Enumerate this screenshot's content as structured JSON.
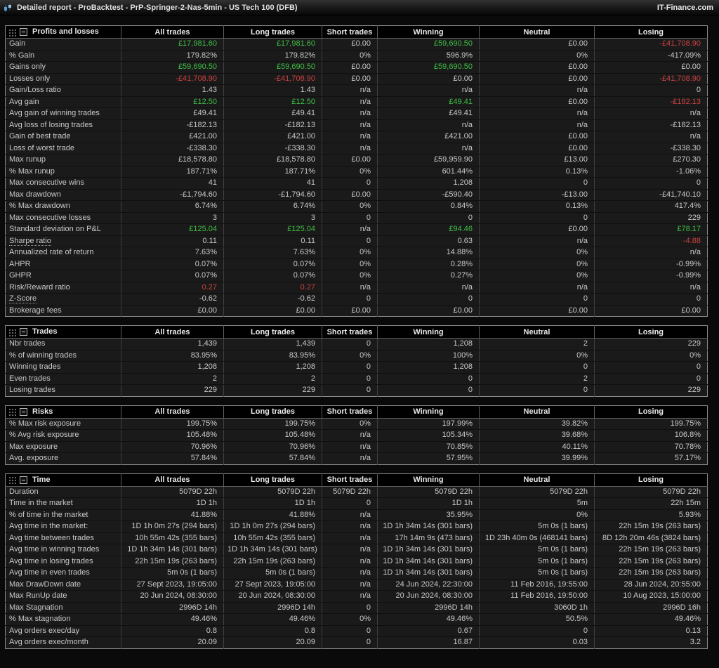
{
  "title_bar": {
    "title": "Detailed report - ProBacktest - PrP-Springer-2-Nas-5min - US Tech 100 (DFB)",
    "right_text": "IT-Finance.com"
  },
  "colors": {
    "green": "#3fbf46",
    "red": "#cc4040",
    "background": "#0a0a0a",
    "row": "#1a1a1a",
    "header": "#000000"
  },
  "columns": [
    "All trades",
    "Long trades",
    "Short trades",
    "Winning",
    "Neutral",
    "Losing"
  ],
  "tables": [
    {
      "title": "Profits and losses",
      "rows": [
        {
          "label": "Gain",
          "values": [
            "£17,981.60",
            "£17,981.60",
            "£0.00",
            "£59,690.50",
            "£0.00",
            "-£41,708.90"
          ],
          "colors": [
            "g",
            "g",
            "",
            "g",
            "",
            "r"
          ]
        },
        {
          "label": "% Gain",
          "values": [
            "179.82%",
            "179.82%",
            "0%",
            "596.9%",
            "0%",
            "-417.09%"
          ]
        },
        {
          "label": "Gains only",
          "values": [
            "£59,690.50",
            "£59,690.50",
            "£0.00",
            "£59,690.50",
            "£0.00",
            "£0.00"
          ],
          "colors": [
            "g",
            "g",
            "",
            "g",
            "",
            ""
          ]
        },
        {
          "label": "Losses only",
          "values": [
            "-£41,708.90",
            "-£41,708.90",
            "£0.00",
            "£0.00",
            "£0.00",
            "-£41,708.90"
          ],
          "colors": [
            "r",
            "r",
            "",
            "",
            "",
            "r"
          ]
        },
        {
          "label": "Gain/Loss ratio",
          "values": [
            "1.43",
            "1.43",
            "n/a",
            "n/a",
            "n/a",
            "0"
          ]
        },
        {
          "label": "Avg gain",
          "values": [
            "£12.50",
            "£12.50",
            "n/a",
            "£49.41",
            "£0.00",
            "-£182.13"
          ],
          "colors": [
            "g",
            "g",
            "",
            "g",
            "",
            "r"
          ]
        },
        {
          "label": "Avg gain of winning trades",
          "values": [
            "£49.41",
            "£49.41",
            "n/a",
            "£49.41",
            "n/a",
            "n/a"
          ]
        },
        {
          "label": "Avg loss of losing trades",
          "values": [
            "-£182.13",
            "-£182.13",
            "n/a",
            "n/a",
            "n/a",
            "-£182.13"
          ]
        },
        {
          "label": "Gain of best trade",
          "values": [
            "£421.00",
            "£421.00",
            "n/a",
            "£421.00",
            "£0.00",
            "n/a"
          ]
        },
        {
          "label": "Loss of worst trade",
          "values": [
            "-£338.30",
            "-£338.30",
            "n/a",
            "n/a",
            "£0.00",
            "-£338.30"
          ]
        },
        {
          "label": "Max runup",
          "values": [
            "£18,578.80",
            "£18,578.80",
            "£0.00",
            "£59,959.90",
            "£13.00",
            "£270.30"
          ]
        },
        {
          "label": "% Max runup",
          "values": [
            "187.71%",
            "187.71%",
            "0%",
            "601.44%",
            "0.13%",
            "-1.06%"
          ]
        },
        {
          "label": "Max consecutive wins",
          "values": [
            "41",
            "41",
            "0",
            "1,208",
            "0",
            "0"
          ]
        },
        {
          "label": "Max drawdown",
          "values": [
            "-£1,794.60",
            "-£1,794.60",
            "£0.00",
            "-£590.40",
            "-£13.00",
            "-£41,740.10"
          ]
        },
        {
          "label": "% Max drawdown",
          "values": [
            "6.74%",
            "6.74%",
            "0%",
            "0.84%",
            "0.13%",
            "417.4%"
          ]
        },
        {
          "label": "Max consecutive losses",
          "values": [
            "3",
            "3",
            "0",
            "0",
            "0",
            "229"
          ]
        },
        {
          "label": "Standard deviation on P&L",
          "values": [
            "£125.04",
            "£125.04",
            "n/a",
            "£94.46",
            "£0.00",
            "£78.17"
          ],
          "colors": [
            "g",
            "g",
            "",
            "g",
            "",
            "g"
          ]
        },
        {
          "label": "Sharpe ratio",
          "underline": true,
          "values": [
            "0.11",
            "0.11",
            "0",
            "0.63",
            "n/a",
            "-4.88"
          ],
          "colors": [
            "",
            "",
            "",
            "",
            "",
            "r"
          ]
        },
        {
          "label": "Annualized rate of return",
          "values": [
            "7.63%",
            "7.63%",
            "0%",
            "14.88%",
            "0%",
            "n/a"
          ]
        },
        {
          "label": "AHPR",
          "values": [
            "0.07%",
            "0.07%",
            "0%",
            "0.28%",
            "0%",
            "-0.99%"
          ]
        },
        {
          "label": "GHPR",
          "values": [
            "0.07%",
            "0.07%",
            "0%",
            "0.27%",
            "0%",
            "-0.99%"
          ]
        },
        {
          "label": "Risk/Reward ratio",
          "values": [
            "0.27",
            "0.27",
            "n/a",
            "n/a",
            "n/a",
            "n/a"
          ],
          "colors": [
            "r",
            "r",
            "",
            "",
            "",
            ""
          ]
        },
        {
          "label": "Z-Score",
          "underline": true,
          "values": [
            "-0.62",
            "-0.62",
            "0",
            "0",
            "0",
            "0"
          ]
        },
        {
          "label": "Brokerage fees",
          "values": [
            "£0.00",
            "£0.00",
            "£0.00",
            "£0.00",
            "£0.00",
            "£0.00"
          ]
        }
      ]
    },
    {
      "title": "Trades",
      "rows": [
        {
          "label": "Nbr trades",
          "values": [
            "1,439",
            "1,439",
            "0",
            "1,208",
            "2",
            "229"
          ]
        },
        {
          "label": "% of winning trades",
          "values": [
            "83.95%",
            "83.95%",
            "0%",
            "100%",
            "0%",
            "0%"
          ]
        },
        {
          "label": "Winning trades",
          "values": [
            "1,208",
            "1,208",
            "0",
            "1,208",
            "0",
            "0"
          ]
        },
        {
          "label": "Even trades",
          "values": [
            "2",
            "2",
            "0",
            "0",
            "2",
            "0"
          ]
        },
        {
          "label": "Losing trades",
          "values": [
            "229",
            "229",
            "0",
            "0",
            "0",
            "229"
          ]
        }
      ]
    },
    {
      "title": "Risks",
      "rows": [
        {
          "label": "% Max risk exposure",
          "values": [
            "199.75%",
            "199.75%",
            "0%",
            "197.99%",
            "39.82%",
            "199.75%"
          ]
        },
        {
          "label": "% Avg risk exposure",
          "values": [
            "105.48%",
            "105.48%",
            "n/a",
            "105.34%",
            "39.68%",
            "106.8%"
          ]
        },
        {
          "label": "Max exposure",
          "values": [
            "70.96%",
            "70.96%",
            "n/a",
            "70.85%",
            "40.11%",
            "70.78%"
          ]
        },
        {
          "label": "Avg. exposure",
          "values": [
            "57.84%",
            "57.84%",
            "n/a",
            "57.95%",
            "39.99%",
            "57.17%"
          ]
        }
      ]
    },
    {
      "title": "Time",
      "rows": [
        {
          "label": "Duration",
          "values": [
            "5079D 22h",
            "5079D 22h",
            "5079D 22h",
            "5079D 22h",
            "5079D 22h",
            "5079D 22h"
          ]
        },
        {
          "label": "Time in the market",
          "values": [
            "1D 1h",
            "1D 1h",
            "0",
            "1D 1h",
            "5m",
            "22h 15m"
          ]
        },
        {
          "label": "% of time in the market",
          "values": [
            "41.88%",
            "41.88%",
            "n/a",
            "35.95%",
            "0%",
            "5.93%"
          ]
        },
        {
          "label": "Avg time in the market:",
          "values": [
            "1D 1h 0m 27s (294 bars)",
            "1D 1h 0m 27s (294 bars)",
            "n/a",
            "1D 1h 34m 14s (301 bars)",
            "5m 0s (1 bars)",
            "22h 15m 19s (263 bars)"
          ]
        },
        {
          "label": "Avg time between trades",
          "values": [
            "10h 55m 42s (355 bars)",
            "10h 55m 42s (355 bars)",
            "n/a",
            "17h 14m 9s (473 bars)",
            "1D 23h 40m 0s (468141 bars)",
            "8D 12h 20m 46s (3824 bars)"
          ]
        },
        {
          "label": "Avg time in winning trades",
          "values": [
            "1D 1h 34m 14s (301 bars)",
            "1D 1h 34m 14s (301 bars)",
            "n/a",
            "1D 1h 34m 14s (301 bars)",
            "5m 0s (1 bars)",
            "22h 15m 19s (263 bars)"
          ]
        },
        {
          "label": "Avg time in losing trades",
          "values": [
            "22h 15m 19s (263 bars)",
            "22h 15m 19s (263 bars)",
            "n/a",
            "1D 1h 34m 14s (301 bars)",
            "5m 0s (1 bars)",
            "22h 15m 19s (263 bars)"
          ]
        },
        {
          "label": "Avg time in even trades",
          "values": [
            "5m 0s (1 bars)",
            "5m 0s (1 bars)",
            "n/a",
            "1D 1h 34m 14s (301 bars)",
            "5m 0s (1 bars)",
            "22h 15m 19s (263 bars)"
          ]
        },
        {
          "label": "Max DrawDown date",
          "values": [
            "27 Sept 2023, 19:05:00",
            "27 Sept 2023, 19:05:00",
            "n/a",
            "24 Jun 2024, 22:30:00",
            "11 Feb 2016, 19:55:00",
            "28 Jun 2024, 20:55:00"
          ]
        },
        {
          "label": "Max RunUp date",
          "values": [
            "20 Jun 2024, 08:30:00",
            "20 Jun 2024, 08:30:00",
            "n/a",
            "20 Jun 2024, 08:30:00",
            "11 Feb 2016, 19:50:00",
            "10 Aug 2023, 15:00:00"
          ]
        },
        {
          "label": "Max Stagnation",
          "values": [
            "2996D 14h",
            "2996D 14h",
            "0",
            "2996D 14h",
            "3060D 1h",
            "2996D 16h"
          ]
        },
        {
          "label": "% Max stagnation",
          "values": [
            "49.46%",
            "49.46%",
            "0%",
            "49.46%",
            "50.5%",
            "49.46%"
          ]
        },
        {
          "label": "Avg orders exec/day",
          "values": [
            "0.8",
            "0.8",
            "0",
            "0.67",
            "0",
            "0.13"
          ]
        },
        {
          "label": "Avg orders exec/month",
          "values": [
            "20.09",
            "20.09",
            "0",
            "16.87",
            "0.03",
            "3.2"
          ]
        }
      ]
    }
  ]
}
